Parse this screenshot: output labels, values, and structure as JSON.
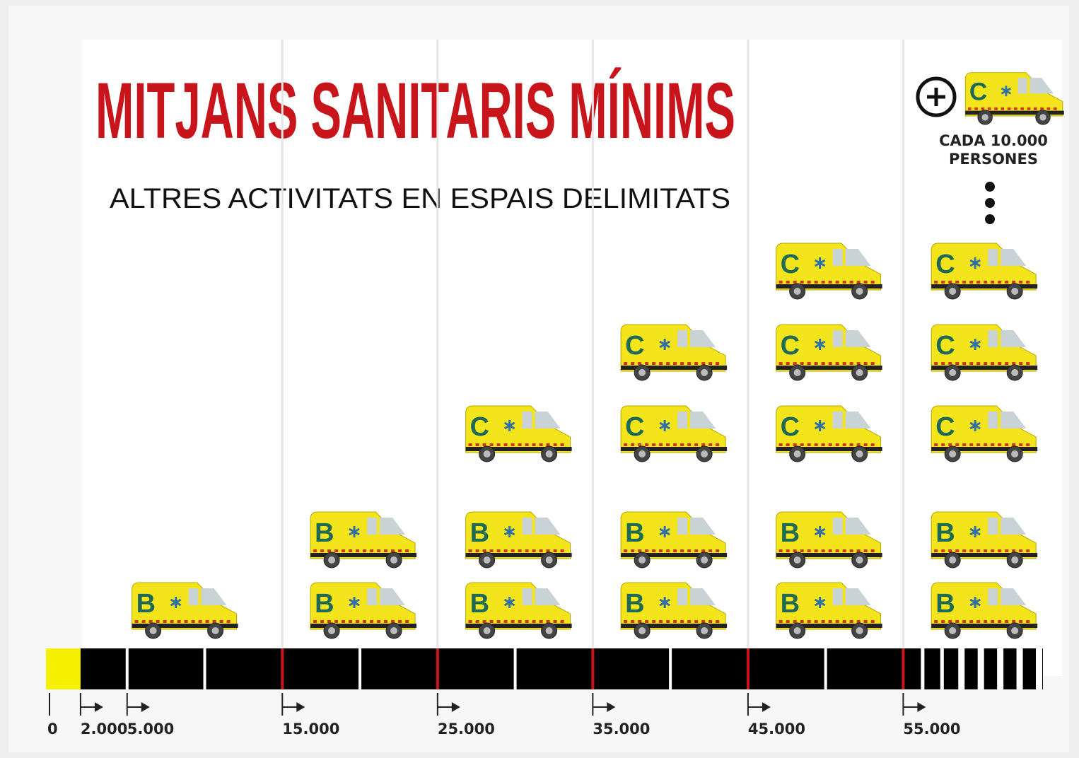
{
  "chart_data": {
    "type": "pictogram",
    "title": "MITJANS SANITARIS MÍNIMS",
    "subtitle": "ALTRES ACTIVITATS EN ESPAIS DELIMITATS",
    "annotation": "CADA 10.000 PERSONES",
    "x": [
      2000,
      15000,
      25000,
      35000,
      45000,
      55000
    ],
    "series": [
      {
        "name": "B",
        "color": "#f3e41c",
        "values": [
          1,
          2,
          2,
          2,
          2,
          2
        ]
      },
      {
        "name": "C",
        "color": "#f3e41c",
        "values": [
          0,
          0,
          1,
          2,
          3,
          3
        ]
      }
    ],
    "xlim": [
      0,
      64000
    ],
    "xticks": [
      {
        "value": 0,
        "label": "0"
      },
      {
        "value": 2000,
        "label": "2.000"
      },
      {
        "value": 5000,
        "label": "5.000"
      },
      {
        "value": 15000,
        "label": "15.000"
      },
      {
        "value": 25000,
        "label": "25.000"
      },
      {
        "value": 35000,
        "label": "35.000"
      },
      {
        "value": 45000,
        "label": "45.000"
      },
      {
        "value": 55000,
        "label": "55.000"
      }
    ]
  }
}
